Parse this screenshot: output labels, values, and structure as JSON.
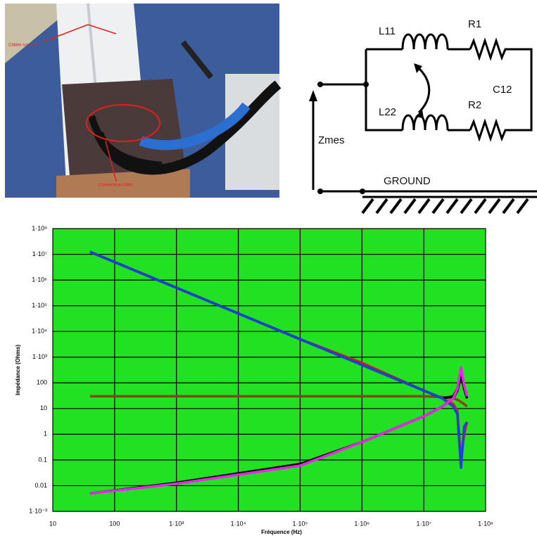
{
  "photo": {
    "labels": [
      "Câbles sous test",
      "Connecteurs SMA"
    ]
  },
  "diagram": {
    "labels": {
      "l11": "L11",
      "r1": "R1",
      "l22": "L22",
      "r2": "R2",
      "c12": "C12",
      "zmes": "Zmes",
      "ground": "GROUND"
    }
  },
  "chart_data": {
    "type": "line",
    "xlabel": "Fréquence (Hz)",
    "ylabel": "Impédance (Ohms)",
    "log_x": true,
    "log_y": true,
    "grid": true,
    "xlim": [
      10,
      100000000
    ],
    "ylim": [
      0.001,
      100000000
    ],
    "xticks": [
      10,
      100,
      {
        "value": 1000,
        "label": "1·10³"
      },
      {
        "value": 10000,
        "label": "1·10⁴"
      },
      {
        "value": 100000,
        "label": "1·10⁵"
      },
      {
        "value": 1000000,
        "label": "1·10⁶"
      },
      {
        "value": 10000000,
        "label": "1·10⁷"
      },
      {
        "value": 100000000,
        "label": "1·10⁸"
      }
    ],
    "yticks": [
      {
        "value": 0.001,
        "label": "1·10⁻³"
      },
      0.01,
      0.1,
      1,
      10,
      100,
      {
        "value": 1000,
        "label": "1·10³"
      },
      {
        "value": 10000,
        "label": "1·10⁴"
      },
      {
        "value": 100000,
        "label": "1·10⁵"
      },
      {
        "value": 1000000,
        "label": "1·10⁶"
      },
      {
        "value": 10000000,
        "label": "1·10⁷"
      },
      {
        "value": 100000000,
        "label": "1·10⁸"
      }
    ],
    "x": [
      40,
      1000,
      100000,
      1000000,
      10000000,
      20000000,
      30000000,
      35000000,
      40000000,
      45000000,
      50000000
    ],
    "series": [
      {
        "color": "#d02020",
        "values": [
          12500000,
          500000,
          5000,
          600,
          50,
          25,
          15,
          8,
          0.1,
          1,
          3
        ]
      },
      {
        "color": "#8b4513",
        "values": [
          30,
          30,
          30,
          30,
          30,
          28,
          25,
          22,
          18,
          15,
          12
        ]
      },
      {
        "color": "#000000",
        "values": [
          12500000,
          500000,
          5000,
          500,
          50,
          25,
          30,
          60,
          300,
          60,
          30
        ]
      },
      {
        "color": "#1f3fd8",
        "values": [
          12500000,
          500000,
          5000,
          500,
          50,
          25,
          12,
          6,
          0.05,
          2,
          3
        ]
      },
      {
        "color": "#000000",
        "values": [
          0.005,
          0.013,
          0.07,
          0.5,
          5,
          12,
          25,
          50,
          200,
          60,
          25
        ]
      },
      {
        "color": "#ee22ee",
        "values": [
          0.005,
          0.012,
          0.06,
          0.5,
          5,
          12,
          25,
          60,
          400,
          80,
          30
        ]
      }
    ]
  }
}
